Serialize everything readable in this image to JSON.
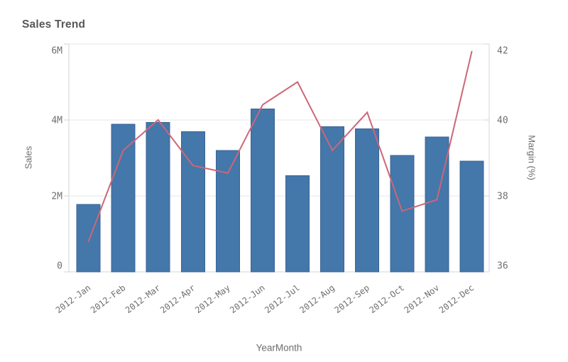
{
  "title": "Sales Trend",
  "colors": {
    "bar_fill": "#4477aa",
    "bar_border": "#3a6494",
    "line": "#cc6677",
    "grid": "#e4e4e4",
    "axis_line": "#d6d6d6",
    "title_text": "#575757",
    "tick_text": "#707070",
    "axis_title_text": "#6e6e6e"
  },
  "chart_data": {
    "type": "combo",
    "title": "Sales Trend",
    "categories": [
      "2012-Jan",
      "2012-Feb",
      "2012-Mar",
      "2012-Apr",
      "2012-May",
      "2012-Jun",
      "2012-Jul",
      "2012-Aug",
      "2012-Sep",
      "2012-Oct",
      "2012-Nov",
      "2012-Dec"
    ],
    "series": [
      {
        "name": "Sales",
        "type": "bar",
        "axis": "left",
        "unit": "millions",
        "values": [
          1.78,
          3.89,
          3.93,
          3.69,
          3.2,
          4.29,
          2.53,
          3.82,
          3.77,
          3.07,
          3.55,
          2.92
        ]
      },
      {
        "name": "Margin (%)",
        "type": "line",
        "axis": "right",
        "unit": "%",
        "values": [
          36.8,
          39.2,
          40.0,
          38.8,
          38.6,
          40.4,
          41.0,
          39.2,
          40.2,
          37.6,
          37.9,
          41.8
        ]
      }
    ],
    "xlabel": "YearMonth",
    "ylabel_left": "Sales",
    "ylabel_right": "Margin (%)",
    "y_left_axis": {
      "min": 0,
      "max": 6,
      "tick_values": [
        0,
        2,
        4,
        6
      ],
      "tick_labels": [
        "0",
        "2M",
        "4M",
        "6M"
      ]
    },
    "y_right_axis": {
      "min": 36,
      "max": 42,
      "tick_values": [
        36,
        38,
        40,
        42
      ],
      "tick_labels": [
        "36",
        "38",
        "40",
        "42"
      ]
    },
    "grid": true,
    "legend": "none"
  }
}
